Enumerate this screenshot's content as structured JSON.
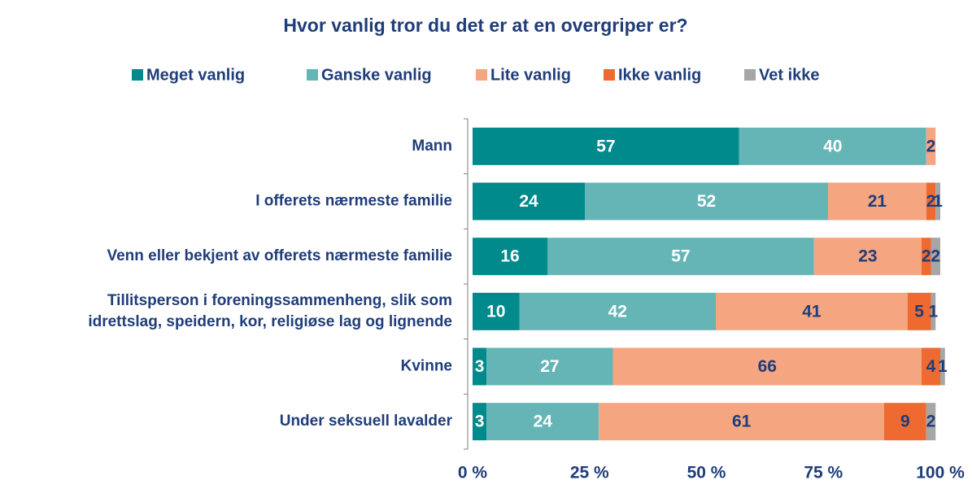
{
  "chart_data": {
    "type": "stacked_bar_horizontal",
    "title": "Hvor vanlig tror du det er at en overgriper er?",
    "categories": [
      "Mann",
      "I offerets nærmeste familie",
      "Venn eller bekjent av offerets nærmeste familie",
      "Tillitsperson i foreningssammenheng, slik som\nidrettslag, speidern, kor, religiøse lag og lignende",
      "Kvinne",
      "Under seksuell lavalder"
    ],
    "series": [
      {
        "name": "Meget vanlig",
        "color": "#008a8c",
        "label_color": "#ffffff",
        "values": [
          57,
          24,
          16,
          10,
          3,
          3
        ]
      },
      {
        "name": "Ganske vanlig",
        "color": "#66b5b6",
        "label_color": "#ffffff",
        "values": [
          40,
          52,
          57,
          42,
          27,
          24
        ]
      },
      {
        "name": "Lite vanlig",
        "color": "#f5a680",
        "label_color": "#1f3d7a",
        "values": [
          2,
          21,
          23,
          41,
          66,
          61
        ]
      },
      {
        "name": "Ikke vanlig",
        "color": "#ee6a30",
        "label_color": "#1f3d7a",
        "values": [
          null,
          2,
          2,
          5,
          4,
          9
        ]
      },
      {
        "name": "Vet ikke",
        "color": "#a6a6a6",
        "label_color": "#1f3d7a",
        "values": [
          null,
          1,
          2,
          1,
          1,
          2
        ]
      }
    ],
    "xlim": [
      0,
      100
    ],
    "xticks": [
      {
        "value": 0,
        "label": "0 %"
      },
      {
        "value": 25,
        "label": "25 %"
      },
      {
        "value": 50,
        "label": "50 %"
      },
      {
        "value": 75,
        "label": "75 %"
      },
      {
        "value": 100,
        "label": "100 %"
      }
    ],
    "legend": "top"
  }
}
